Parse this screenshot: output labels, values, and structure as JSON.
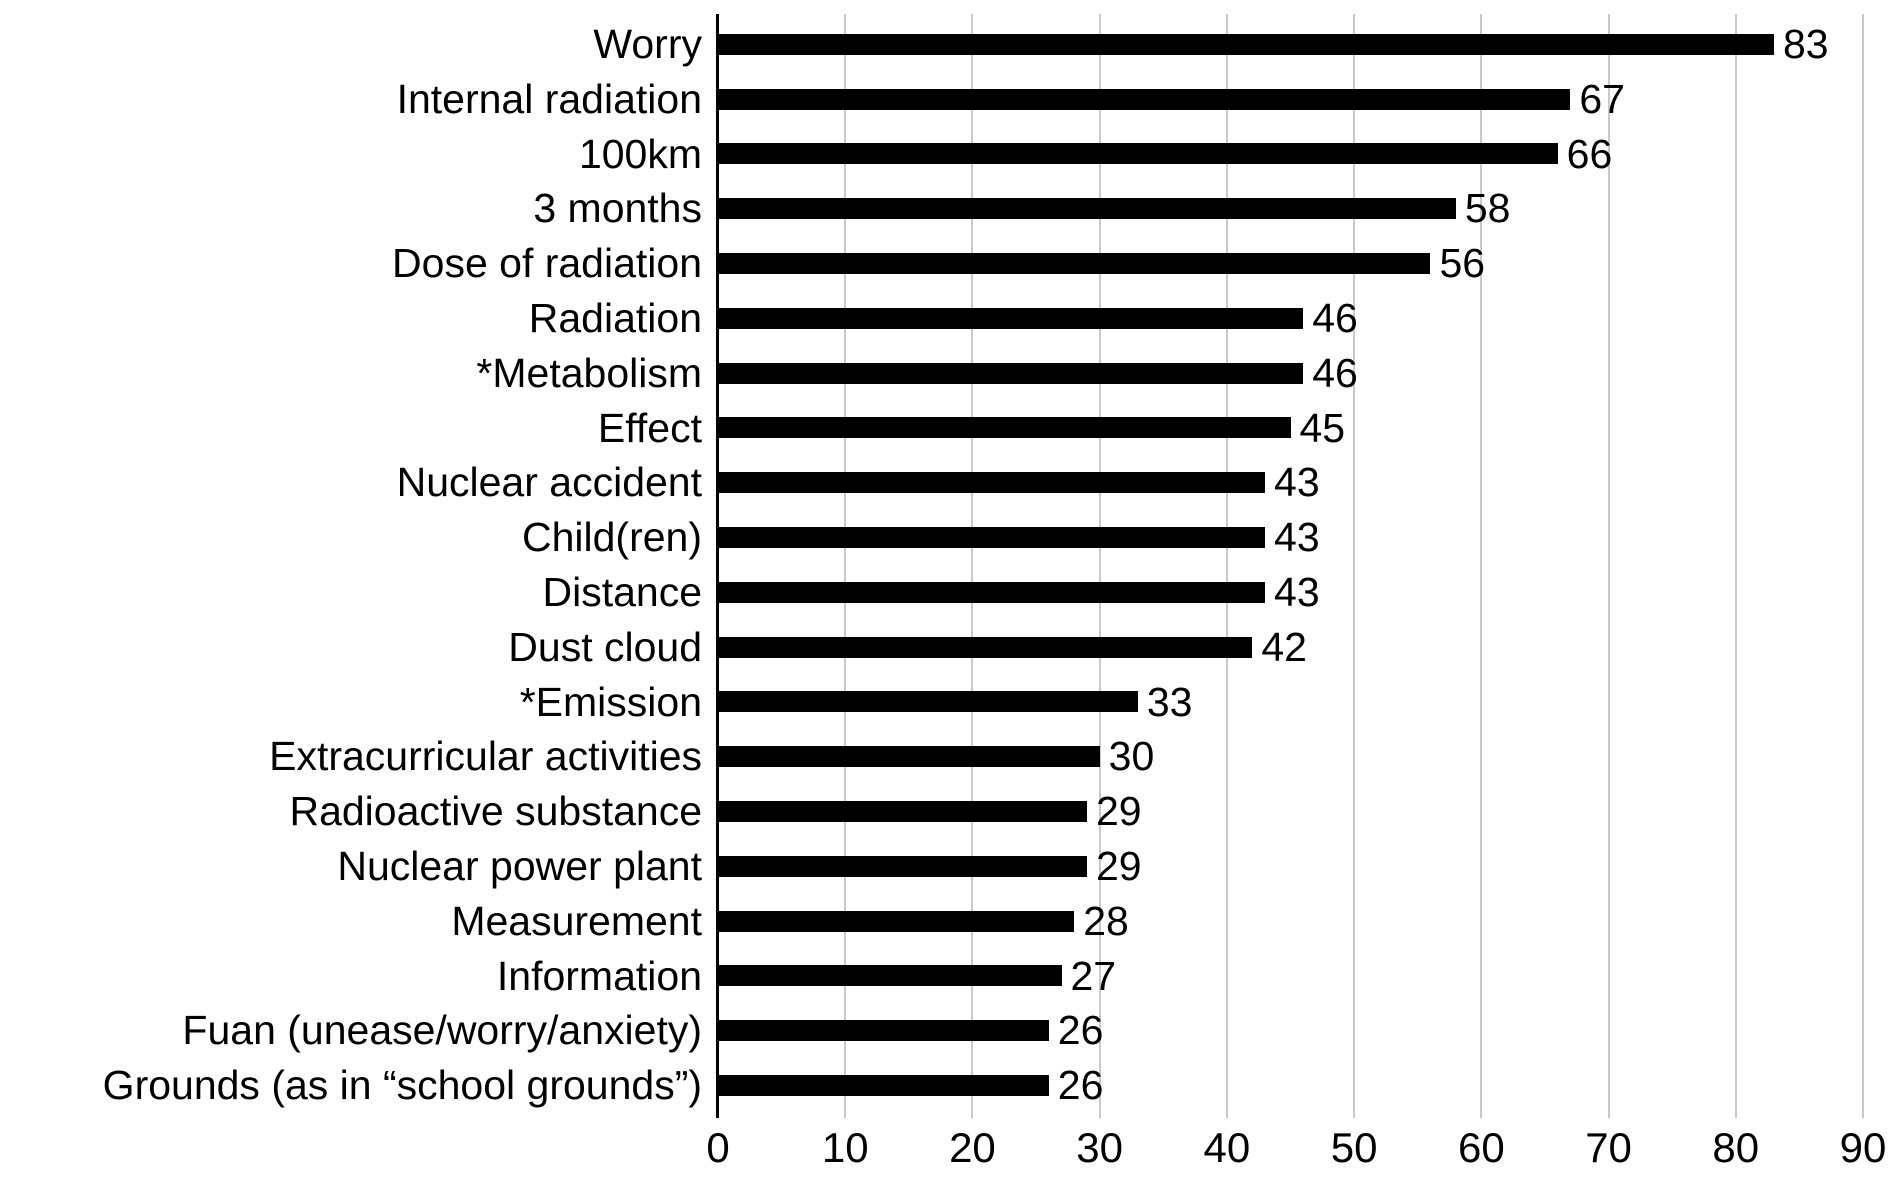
{
  "chart_data": {
    "type": "bar",
    "orientation": "horizontal",
    "title": "",
    "xlabel": "",
    "ylabel": "",
    "categories": [
      "Worry",
      "Internal radiation",
      "100km",
      "3 months",
      "Dose of radiation",
      "Radiation",
      "*Metabolism",
      "Effect",
      "Nuclear accident",
      "Child(ren)",
      "Distance",
      "Dust cloud",
      "*Emission",
      "Extracurricular activities",
      "Radioactive substance",
      "Nuclear power plant",
      "Measurement",
      "Information",
      "Fuan (unease/worry/anxiety)",
      "Grounds (as in “school grounds”)"
    ],
    "values": [
      83,
      67,
      66,
      58,
      56,
      46,
      46,
      45,
      43,
      43,
      43,
      42,
      33,
      30,
      29,
      29,
      28,
      27,
      26,
      26
    ],
    "data_labels_shown": true,
    "xlim": [
      0,
      90
    ],
    "xticks": [
      0,
      10,
      20,
      30,
      40,
      50,
      60,
      70,
      80,
      90
    ],
    "grid": "vertical",
    "legend": "none",
    "bar_color": "#000000",
    "gridline_color": "#c9c9c9",
    "axis_color": "#000000",
    "text_color": "#000000",
    "background_color": "#ffffff"
  }
}
